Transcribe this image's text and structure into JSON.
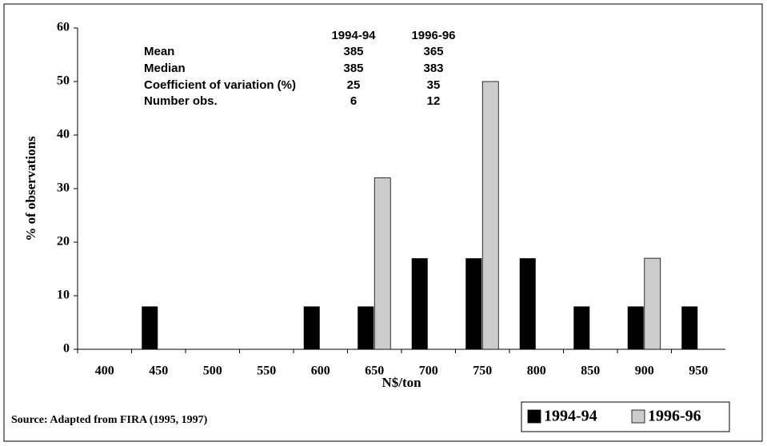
{
  "chart_data": {
    "type": "bar",
    "x_label": "N$/ton",
    "y_label": "% of observations",
    "source": "Source: Adapted from FIRA (1995, 1997)",
    "categories": [
      "400",
      "450",
      "500",
      "550",
      "600",
      "650",
      "700",
      "750",
      "800",
      "850",
      "900",
      "950"
    ],
    "series": [
      {
        "name": "1994-94",
        "color": "#000000",
        "values": [
          0,
          8,
          0,
          0,
          8,
          8,
          17,
          17,
          17,
          8,
          8,
          8
        ]
      },
      {
        "name": "1996-96",
        "color": "#cccccc",
        "values": [
          0,
          0,
          0,
          0,
          0,
          32,
          0,
          50,
          0,
          0,
          17,
          0
        ]
      }
    ],
    "ylim": [
      0,
      60
    ],
    "yticks": [
      0,
      10,
      20,
      30,
      40,
      50,
      60
    ],
    "legend": "bottom-right",
    "stats_table": {
      "columns": [
        "1994-94",
        "1996-96"
      ],
      "rows": [
        {
          "label": "Mean",
          "values": [
            "385",
            "365"
          ]
        },
        {
          "label": "Median",
          "values": [
            "385",
            "383"
          ]
        },
        {
          "label": "Coefficient of variation (%)",
          "values": [
            "25",
            "35"
          ]
        },
        {
          "label": "Number obs.",
          "values": [
            "6",
            "12"
          ]
        }
      ]
    }
  }
}
